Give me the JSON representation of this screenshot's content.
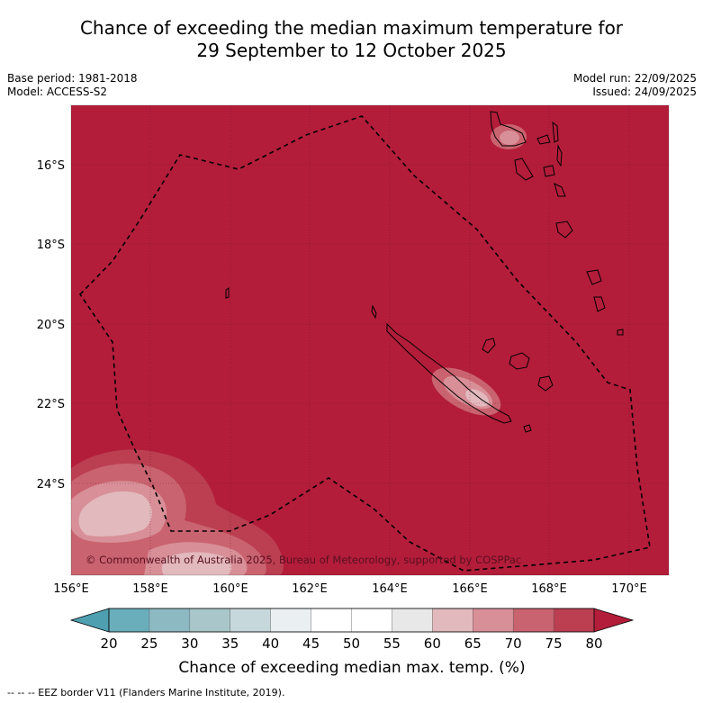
{
  "title": {
    "line1": "Chance of exceeding the median maximum temperature for",
    "line2": "29 September to 12 October 2025"
  },
  "meta": {
    "base_period": "Base period: 1981-2018",
    "model": "Model: ACCESS-S2",
    "model_run": "Model run: 22/09/2025",
    "issued": "Issued: 24/09/2025"
  },
  "map": {
    "lat_labels": [
      "16°S",
      "18°S",
      "20°S",
      "22°S",
      "24°S"
    ],
    "lon_labels": [
      "156°E",
      "158°E",
      "160°E",
      "162°E",
      "164°E",
      "166°E",
      "168°E",
      "170°E"
    ],
    "lon_range": [
      156,
      171
    ],
    "lat_range": [
      -14.5,
      -26.3
    ],
    "background_color": "#b31d3a",
    "copyright": "© Commonwealth of Australia 2025, Bureau of Meteorology, supported by COSPPac"
  },
  "colorbar": {
    "ticks": [
      "20",
      "25",
      "30",
      "35",
      "40",
      "45",
      "50",
      "55",
      "60",
      "65",
      "70",
      "75",
      "80"
    ],
    "colors": [
      "#6aaebc",
      "#8db9c3",
      "#a9c7cb",
      "#c6d8dc",
      "#eaf0f2",
      "#ffffff",
      "#ffffff",
      "#e8e8e8",
      "#e2b9bd",
      "#d88f97",
      "#c9636f",
      "#bb3e51"
    ],
    "low_color": "#4e9fb0",
    "high_color": "#b31d3a",
    "title": "Chance of exceeding median max. temp. (%)"
  },
  "footer": "--  --  -- EEZ border V11 (Flanders Marine Institute, 2019)."
}
